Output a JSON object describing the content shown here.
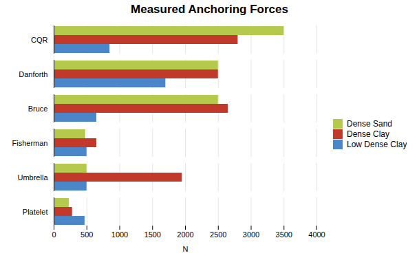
{
  "chart_data": {
    "type": "bar",
    "orientation": "horizontal",
    "title": "Measured Anchoring Forces",
    "xlabel": "N",
    "categories": [
      "CQR",
      "Danforth",
      "Bruce",
      "Fisherman",
      "Umbrella",
      "Platelet"
    ],
    "series": [
      {
        "name": "Dense Sand",
        "color": "#b5c94c",
        "values": [
          3500,
          2500,
          2500,
          480,
          500,
          230
        ]
      },
      {
        "name": "Dense Clay",
        "color": "#c0392b",
        "values": [
          2800,
          2500,
          2650,
          650,
          1950,
          280
        ]
      },
      {
        "name": "Low Dense Clay",
        "color": "#4a86c8",
        "values": [
          850,
          1700,
          650,
          500,
          500,
          470
        ]
      }
    ],
    "xlim": [
      0,
      4000
    ],
    "xticks": [
      0,
      500,
      1000,
      1500,
      2000,
      2500,
      3000,
      3500,
      4000
    ],
    "grid": true,
    "legend": "right"
  }
}
